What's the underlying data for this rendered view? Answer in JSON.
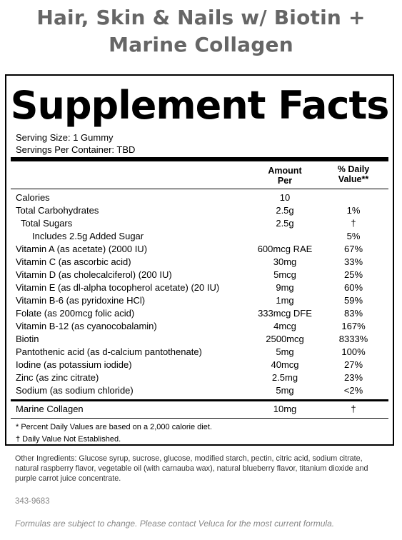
{
  "product_title": {
    "line1": "Hair, Skin & Nails  w/ Biotin +",
    "line2": "Marine Collagen"
  },
  "panel": {
    "heading": "Supplement Facts",
    "serving_size": "Serving Size: 1 Gummy",
    "servings_per_container": "Servings Per Container: TBD",
    "col_amount_1": "Amount",
    "col_amount_2": "Per",
    "col_dv_1": "% Daily",
    "col_dv_2": "Value**",
    "rows": [
      {
        "name": "Calories",
        "amount": "10",
        "dv": ""
      },
      {
        "name": "Total Carbohydrates",
        "amount": "2.5g",
        "dv": "1%"
      },
      {
        "name": "Total Sugars",
        "amount": "2.5g",
        "dv": "†"
      },
      {
        "name": "Includes 2.5g Added Sugar",
        "amount": "",
        "dv": "5%"
      },
      {
        "name": "Vitamin A (as acetate) (2000 IU)",
        "amount": "600mcg RAE",
        "dv": "67%"
      },
      {
        "name": "Vitamin C (as ascorbic acid)",
        "amount": "30mg",
        "dv": "33%"
      },
      {
        "name": "Vitamin D (as cholecalciferol) (200 IU)",
        "amount": "5mcg",
        "dv": "25%"
      },
      {
        "name": "Vitamin E (as dl-alpha tocopherol acetate) (20 IU)",
        "amount": "9mg",
        "dv": "60%"
      },
      {
        "name": "Vitamin B-6 (as pyridoxine HCl)",
        "amount": "1mg",
        "dv": "59%"
      },
      {
        "name": "Folate (as 200mcg folic acid)",
        "amount": "333mcg DFE",
        "dv": "83%"
      },
      {
        "name": "Vitamin B-12 (as cyanocobalamin)",
        "amount": "4mcg",
        "dv": "167%"
      },
      {
        "name": "Biotin",
        "amount": "2500mcg",
        "dv": "8333%"
      },
      {
        "name": "Pantothenic acid (as d-calcium pantothenate)",
        "amount": "5mg",
        "dv": "100%"
      },
      {
        "name": "Iodine (as potassium iodide)",
        "amount": "40mcg",
        "dv": "27%"
      },
      {
        "name": "Zinc (as zinc citrate)",
        "amount": "2.5mg",
        "dv": "23%"
      },
      {
        "name": "Sodium (as sodium chloride)",
        "amount": "5mg",
        "dv": "<2%"
      }
    ],
    "collagen": {
      "name": "Marine Collagen",
      "amount": "10mg",
      "dv": "†"
    },
    "footnote1": "* Percent Daily Values are based on a 2,000 calorie diet.",
    "footnote2": "† Daily Value Not Established."
  },
  "other_ingredients": "Other Ingredients: Glucose syrup, sucrose, glucose, modified starch, pectin, citric acid, sodium citrate, natural raspberry flavor, vegetable oil (with carnauba wax), natural blueberry flavor, titanium dioxide and purple carrot juice concentrate.",
  "product_code": "343-9683",
  "disclaimer": "Formulas are subject to change. Please contact Veluca for the most current formula."
}
